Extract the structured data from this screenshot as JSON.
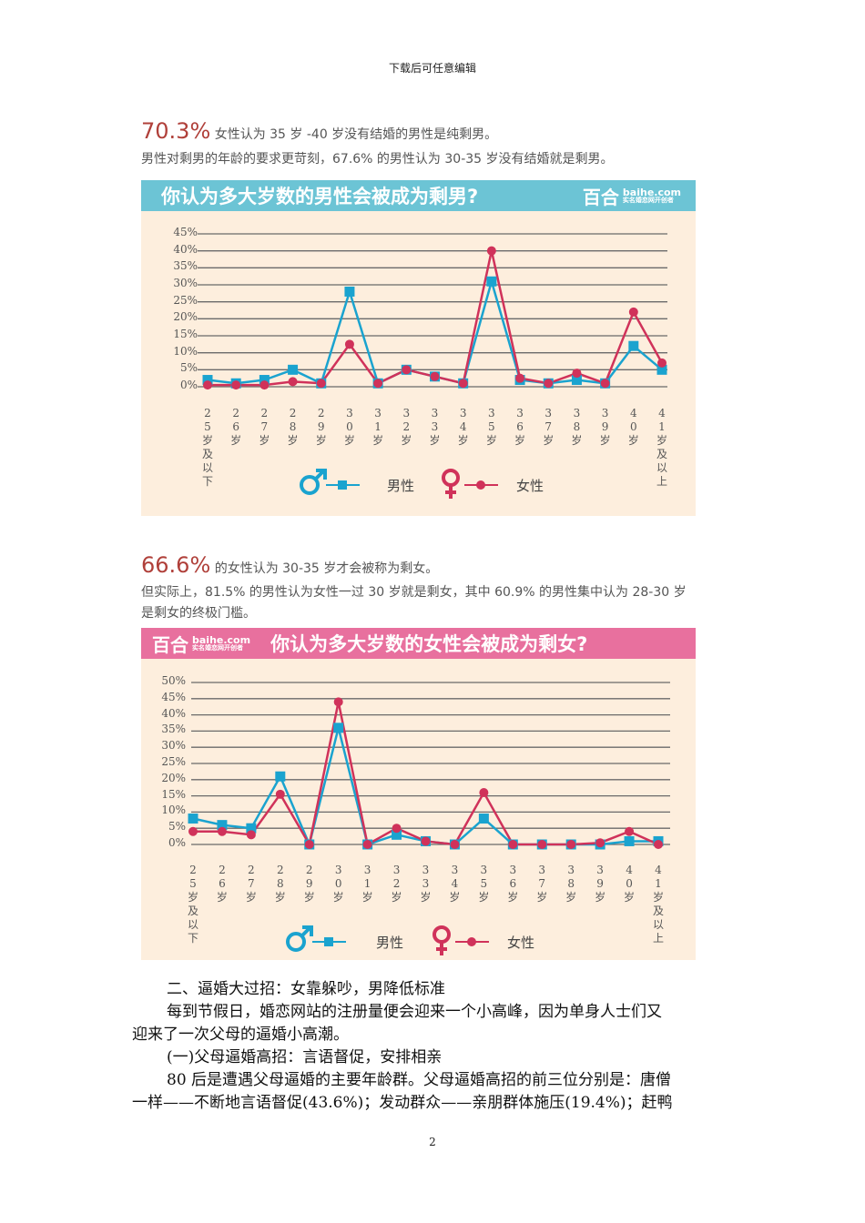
{
  "page_header": "下载后可任意编辑",
  "section1": {
    "highlight": "70.3%",
    "line1": "女性认为 35 岁 -40 岁没有结婚的男性是纯剩男。",
    "line2": "男性对剩男的年龄的要求更苛刻，67.6% 的男性认为 30-35 岁没有结婚就是剩男。",
    "chart_title": "你认为多大岁数的男性会被成为剩男?",
    "logo_text": "百合",
    "logo_domain": "baihe.com",
    "logo_slogan": "实名婚恋网开创者"
  },
  "section2": {
    "highlight": "66.6%",
    "line1": "的女性认为 30-35 岁才会被称为剩女。",
    "line2": "但实际上，81.5% 的男性认为女性一过 30 岁就是剩女，其中 60.9% 的男性集中认为 28-30 岁",
    "line3": "是剩女的终极门槛。",
    "chart_title": "你认为多大岁数的女性会被成为剩女?",
    "logo_text": "百合",
    "logo_domain": "baihe.com",
    "logo_slogan": "实名婚恋网开创者"
  },
  "chart_data": [
    {
      "type": "line",
      "title": "你认为多大岁数的男性会被成为剩男?",
      "categories": [
        "25岁及以下",
        "26岁",
        "27岁",
        "28岁",
        "29岁",
        "30岁",
        "31岁",
        "32岁",
        "33岁",
        "34岁",
        "35岁",
        "36岁",
        "37岁",
        "38岁",
        "39岁",
        "40岁",
        "41岁及以上"
      ],
      "yticks": [
        "0%",
        "5%",
        "10%",
        "15%",
        "20%",
        "25%",
        "30%",
        "35%",
        "40%",
        "45%"
      ],
      "ylim": [
        0,
        45
      ],
      "legend": [
        "男性",
        "女性"
      ],
      "series": [
        {
          "name": "男性",
          "color": "#1aa3cf",
          "marker": "square",
          "values": [
            2,
            1,
            2,
            5,
            1,
            28,
            1,
            5,
            3,
            1,
            31,
            2,
            1,
            2,
            1,
            12,
            5
          ]
        },
        {
          "name": "女性",
          "color": "#d0325a",
          "marker": "circle",
          "values": [
            0.5,
            0.5,
            0.5,
            1.5,
            1,
            12.5,
            1,
            5,
            3,
            1,
            40,
            2.5,
            1,
            4,
            1,
            22,
            7
          ]
        }
      ]
    },
    {
      "type": "line",
      "title": "你认为多大岁数的女性会被成为剩女?",
      "categories": [
        "25岁及以下",
        "26岁",
        "27岁",
        "28岁",
        "29岁",
        "30岁",
        "31岁",
        "32岁",
        "33岁",
        "34岁",
        "35岁",
        "36岁",
        "37岁",
        "38岁",
        "39岁",
        "40岁",
        "41岁及以上"
      ],
      "yticks": [
        "0%",
        "5%",
        "10%",
        "15%",
        "20%",
        "25%",
        "30%",
        "35%",
        "40%",
        "45%",
        "50%"
      ],
      "ylim": [
        0,
        50
      ],
      "legend": [
        "男性",
        "女性"
      ],
      "series": [
        {
          "name": "男性",
          "color": "#1aa3cf",
          "marker": "square",
          "values": [
            8,
            6,
            5,
            21,
            0,
            36,
            0,
            3,
            1,
            0,
            8,
            0,
            0,
            0,
            0,
            1,
            1
          ]
        },
        {
          "name": "女性",
          "color": "#d0325a",
          "marker": "circle",
          "values": [
            4,
            4,
            3,
            15.5,
            0,
            44,
            0,
            5,
            1,
            0,
            16,
            0,
            0,
            0,
            0.5,
            4,
            0
          ]
        }
      ]
    }
  ],
  "body": {
    "heading": "二、逼婚大过招：女靠躲吵，男降低标准",
    "p1_line1": "每到节假日，婚恋网站的注册量便会迎来一个小高峰，因为单身人士们又",
    "p1_line2": "迎来了一次父母的逼婚小高潮。",
    "subheading": "(一)父母逼婚高招：言语督促，安排相亲",
    "p2_line1": "80 后是遭遇父母逼婚的主要年龄群。父母逼婚高招的前三位分别是：唐僧",
    "p2_line2": "一样——不断地言语督促(43.6%)；发动群众——亲朋群体施压(19.4%)；赶鸭"
  },
  "page_number": "2"
}
